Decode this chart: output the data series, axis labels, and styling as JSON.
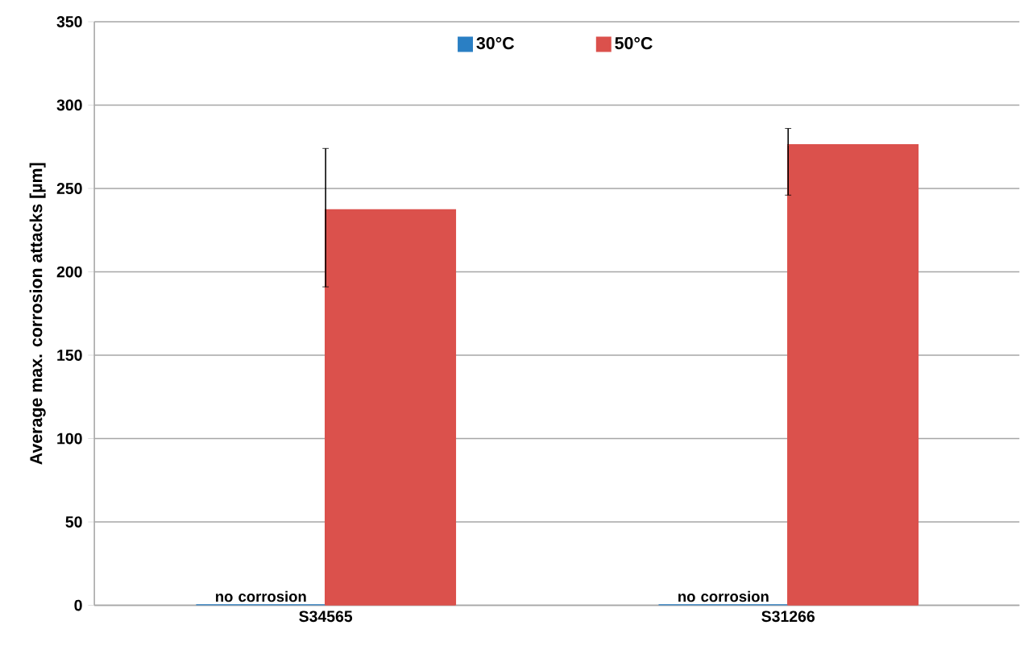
{
  "chart_data": {
    "type": "bar",
    "ylabel": "Average max. corrosion attacks  [µm]",
    "categories": [
      "S34565",
      "S31266"
    ],
    "series": [
      {
        "name": "30°C",
        "color": "#2a7fc4",
        "values": [
          0,
          0
        ]
      },
      {
        "name": "50°C",
        "color": "#db514c",
        "values": [
          237,
          276
        ],
        "errors": [
          [
            191,
            274
          ],
          [
            246,
            286
          ]
        ]
      }
    ],
    "ylim": [
      0,
      350
    ],
    "yticks": [
      0,
      50,
      100,
      150,
      200,
      250,
      300,
      350
    ],
    "grid": "y",
    "legend": "top",
    "annotations": [
      {
        "text": "no corrosion",
        "x": "S34565",
        "y": 0
      },
      {
        "text": "no corrosion",
        "x": "S31266",
        "y": 0
      }
    ]
  }
}
